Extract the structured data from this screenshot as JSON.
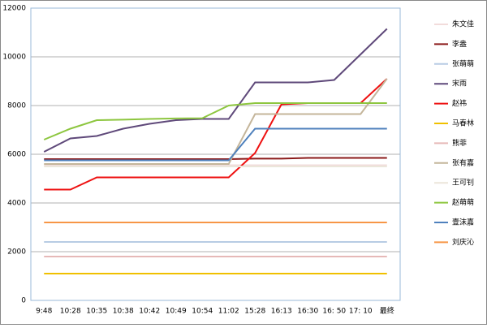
{
  "chart_data": {
    "type": "line",
    "categories": [
      "9:48",
      "10:28",
      "10:35",
      "10:38",
      "10:42",
      "10:49",
      "10:54",
      "11:02",
      "15:28",
      "16:13",
      "16:30",
      "16: 50",
      "17: 10",
      "最终"
    ],
    "ylim": [
      0,
      12000
    ],
    "yticks": [
      0,
      2000,
      4000,
      6000,
      8000,
      10000,
      12000
    ],
    "grid": true,
    "series": [
      {
        "name": "朱文佳",
        "color": "#f2dcdb",
        "values": [
          5550,
          5550,
          5550,
          5550,
          5550,
          5550,
          5550,
          5550,
          5550,
          5550,
          5550,
          5550,
          5550,
          5550
        ]
      },
      {
        "name": "李盎",
        "color": "#8b1a1a",
        "values": [
          5800,
          5800,
          5800,
          5800,
          5800,
          5800,
          5800,
          5800,
          5820,
          5820,
          5850,
          5850,
          5850,
          5850
        ]
      },
      {
        "name": "张萌萌",
        "color": "#b8cce4",
        "values": [
          2400,
          2400,
          2400,
          2400,
          2400,
          2400,
          2400,
          2400,
          2400,
          2400,
          2400,
          2400,
          2400,
          2400
        ]
      },
      {
        "name": "宋雨",
        "color": "#5f497a",
        "values": [
          6100,
          6650,
          6750,
          7050,
          7250,
          7400,
          7450,
          7450,
          8950,
          8950,
          8950,
          9050,
          10100,
          11150
        ]
      },
      {
        "name": "赵祎",
        "color": "#ee1111",
        "values": [
          4550,
          4550,
          5050,
          5050,
          5050,
          5050,
          5050,
          5050,
          6050,
          8050,
          8100,
          8100,
          8100,
          9100
        ]
      },
      {
        "name": "马春林",
        "color": "#f0c000",
        "values": [
          1100,
          1100,
          1100,
          1100,
          1100,
          1100,
          1100,
          1100,
          1100,
          1100,
          1100,
          1100,
          1100,
          1100
        ]
      },
      {
        "name": "熊菲",
        "color": "#e6b9b8",
        "values": [
          1800,
          1800,
          1800,
          1800,
          1800,
          1800,
          1800,
          1800,
          1800,
          1800,
          1800,
          1800,
          1800,
          1800
        ]
      },
      {
        "name": "张有嘉",
        "color": "#c4b59a",
        "values": [
          5600,
          5600,
          5600,
          5600,
          5600,
          5600,
          5600,
          5600,
          7650,
          7650,
          7650,
          7650,
          7650,
          9100
        ]
      },
      {
        "name": "王可钊",
        "color": "#ebe6da",
        "values": [
          5500,
          5500,
          5500,
          5500,
          5500,
          5500,
          5500,
          5500,
          5500,
          5500,
          5500,
          5500,
          5500,
          5500
        ]
      },
      {
        "name": "赵萌萌",
        "color": "#8dc63f",
        "values": [
          6600,
          7050,
          7400,
          7420,
          7450,
          7470,
          7480,
          8000,
          8100,
          8100,
          8100,
          8100,
          8100,
          8100
        ]
      },
      {
        "name": "壹沫嘉",
        "color": "#4f81bd",
        "values": [
          5750,
          5750,
          5750,
          5750,
          5750,
          5750,
          5750,
          5750,
          7050,
          7050,
          7050,
          7050,
          7050,
          7050
        ]
      },
      {
        "name": "刘庆沁",
        "color": "#f79646",
        "values": [
          3200,
          3200,
          3200,
          3200,
          3200,
          3200,
          3200,
          3200,
          3200,
          3200,
          3200,
          3200,
          3200,
          3200
        ]
      }
    ]
  }
}
